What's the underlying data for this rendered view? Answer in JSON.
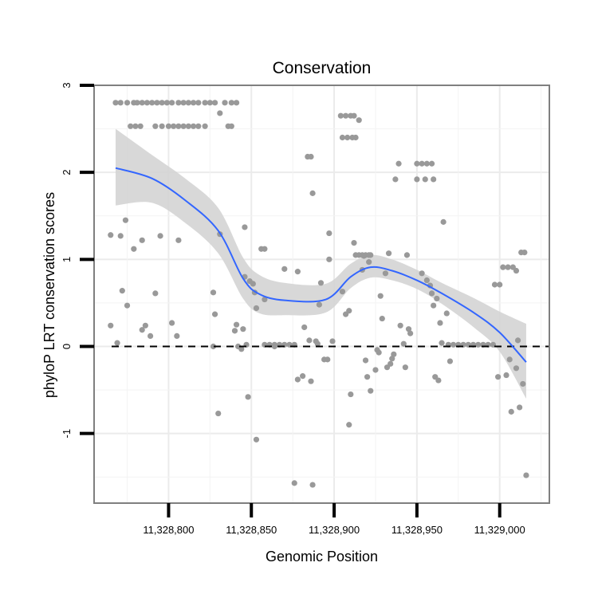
{
  "chart_data": {
    "type": "scatter",
    "title": "Conservation",
    "xlabel": "Genomic Position",
    "ylabel": "phyloP LRT conservation scores",
    "xlim": [
      11328755,
      11329030
    ],
    "ylim": [
      -1.8,
      3.0
    ],
    "x_ticks": [
      {
        "value": 11328800,
        "label": "11,328,800"
      },
      {
        "value": 11328850,
        "label": "11,328,850"
      },
      {
        "value": 11328900,
        "label": "11,328,900"
      },
      {
        "value": 11328950,
        "label": "11,328,950"
      },
      {
        "value": 11329000,
        "label": "11,329,000"
      }
    ],
    "y_ticks": [
      {
        "value": 3,
        "label": "3"
      },
      {
        "value": 2,
        "label": "2"
      },
      {
        "value": 1,
        "label": "1"
      },
      {
        "value": 0,
        "label": "0"
      },
      {
        "value": -1,
        "label": "-1"
      }
    ],
    "grid": true,
    "reference_line": {
      "y": 0,
      "style": "dashed"
    },
    "colors": {
      "points": "#999999",
      "smooth": "#3366ff",
      "ribbon": "#d4d4d4",
      "panel_border": "#7f7f7f",
      "grid": "#ebebeb"
    },
    "series": [
      {
        "name": "scores",
        "points": [
          [
            11328768,
            2.8
          ],
          [
            11328771,
            2.8
          ],
          [
            11328775,
            2.8
          ],
          [
            11328779,
            2.8
          ],
          [
            11328781,
            2.8
          ],
          [
            11328784,
            2.8
          ],
          [
            11328787,
            2.8
          ],
          [
            11328790,
            2.8
          ],
          [
            11328793,
            2.8
          ],
          [
            11328796,
            2.8
          ],
          [
            11328799,
            2.8
          ],
          [
            11328802,
            2.8
          ],
          [
            11328806,
            2.8
          ],
          [
            11328809,
            2.8
          ],
          [
            11328812,
            2.8
          ],
          [
            11328815,
            2.8
          ],
          [
            11328818,
            2.8
          ],
          [
            11328822,
            2.8
          ],
          [
            11328825,
            2.8
          ],
          [
            11328828,
            2.8
          ],
          [
            11328834,
            2.8
          ],
          [
            11328838,
            2.8
          ],
          [
            11328841,
            2.8
          ],
          [
            11328777,
            2.53
          ],
          [
            11328780,
            2.53
          ],
          [
            11328783,
            2.53
          ],
          [
            11328792,
            2.53
          ],
          [
            11328796,
            2.53
          ],
          [
            11328800,
            2.53
          ],
          [
            11328803,
            2.53
          ],
          [
            11328806,
            2.53
          ],
          [
            11328809,
            2.53
          ],
          [
            11328812,
            2.53
          ],
          [
            11328815,
            2.53
          ],
          [
            11328818,
            2.53
          ],
          [
            11328822,
            2.53
          ],
          [
            11328836,
            2.53
          ],
          [
            11328838,
            2.53
          ],
          [
            11328831,
            2.68
          ],
          [
            11328904,
            2.65
          ],
          [
            11328907,
            2.65
          ],
          [
            11328910,
            2.65
          ],
          [
            11328912,
            2.65
          ],
          [
            11328915,
            2.6
          ],
          [
            11328905,
            2.4
          ],
          [
            11328908,
            2.4
          ],
          [
            11328911,
            2.4
          ],
          [
            11328913,
            2.4
          ],
          [
            11328884,
            2.18
          ],
          [
            11328886,
            2.18
          ],
          [
            11328939,
            2.1
          ],
          [
            11328950,
            2.1
          ],
          [
            11328953,
            2.1
          ],
          [
            11328956,
            2.1
          ],
          [
            11328959,
            2.1
          ],
          [
            11328937,
            1.92
          ],
          [
            11328950,
            1.92
          ],
          [
            11328955,
            1.92
          ],
          [
            11328960,
            1.92
          ],
          [
            11328887,
            1.76
          ],
          [
            11328765,
            1.28
          ],
          [
            11328771,
            1.27
          ],
          [
            11328774,
            1.45
          ],
          [
            11328779,
            1.12
          ],
          [
            11328784,
            1.22
          ],
          [
            11328792,
            0.61
          ],
          [
            11328795,
            1.27
          ],
          [
            11328806,
            1.22
          ],
          [
            11328831,
            1.29
          ],
          [
            11328846,
            1.37
          ],
          [
            11328856,
            1.12
          ],
          [
            11328858,
            1.12
          ],
          [
            11328772,
            0.64
          ],
          [
            11328775,
            0.47
          ],
          [
            11328765,
            0.24
          ],
          [
            11328769,
            0.04
          ],
          [
            11328784,
            0.19
          ],
          [
            11328786,
            0.24
          ],
          [
            11328789,
            0.12
          ],
          [
            11328802,
            0.27
          ],
          [
            11328805,
            0.12
          ],
          [
            11328827,
            0.62
          ],
          [
            11328828,
            0.37
          ],
          [
            11328827,
            0.0
          ],
          [
            11328830,
            -0.77
          ],
          [
            11328846,
            0.8
          ],
          [
            11328849,
            0.75
          ],
          [
            11328851,
            0.72
          ],
          [
            11328852,
            0.62
          ],
          [
            11328853,
            0.44
          ],
          [
            11328858,
            0.54
          ],
          [
            11328847,
            0.02
          ],
          [
            11328848,
            -0.58
          ],
          [
            11328853,
            -1.07
          ],
          [
            11328845,
            0.2
          ],
          [
            11328840,
            0.18
          ],
          [
            11328841,
            0.25
          ],
          [
            11328842,
            0.0
          ],
          [
            11328844,
            -0.03
          ],
          [
            11328858,
            0.02
          ],
          [
            11328861,
            0.02
          ],
          [
            11328864,
            0.02
          ],
          [
            11328867,
            0.02
          ],
          [
            11328870,
            0.02
          ],
          [
            11328873,
            0.02
          ],
          [
            11328876,
            0.02
          ],
          [
            11328864,
            0.0
          ],
          [
            11328870,
            0.89
          ],
          [
            11328876,
            -1.57
          ],
          [
            11328878,
            0.86
          ],
          [
            11328878,
            -0.38
          ],
          [
            11328881,
            -0.34
          ],
          [
            11328882,
            0.22
          ],
          [
            11328885,
            0.07
          ],
          [
            11328886,
            -0.4
          ],
          [
            11328887,
            -1.59
          ],
          [
            11328889,
            0.06
          ],
          [
            11328890,
            0.03
          ],
          [
            11328891,
            0.48
          ],
          [
            11328892,
            0.73
          ],
          [
            11328894,
            -0.15
          ],
          [
            11328896,
            -0.15
          ],
          [
            11328897,
            1.3
          ],
          [
            11328897,
            1.0
          ],
          [
            11328899,
            0.06
          ],
          [
            11328905,
            0.63
          ],
          [
            11328907,
            0.37
          ],
          [
            11328909,
            0.41
          ],
          [
            11328909,
            -0.9
          ],
          [
            11328910,
            -0.55
          ],
          [
            11328912,
            1.19
          ],
          [
            11328913,
            1.05
          ],
          [
            11328915,
            1.05
          ],
          [
            11328917,
            1.05
          ],
          [
            11328919,
            1.05
          ],
          [
            11328921,
            1.05
          ],
          [
            11328922,
            1.05
          ],
          [
            11328918,
            1.04
          ],
          [
            11328921,
            0.97
          ],
          [
            11328917,
            0.88
          ],
          [
            11328919,
            -0.16
          ],
          [
            11328920,
            -0.35
          ],
          [
            11328922,
            -0.51
          ],
          [
            11328925,
            -0.27
          ],
          [
            11328926,
            -0.04
          ],
          [
            11328927,
            -0.07
          ],
          [
            11328928,
            0.58
          ],
          [
            11328929,
            0.32
          ],
          [
            11328931,
            0.84
          ],
          [
            11328932,
            -0.24
          ],
          [
            11328934,
            -0.2
          ],
          [
            11328935,
            -0.14
          ],
          [
            11328936,
            -0.09
          ],
          [
            11328933,
            1.07
          ],
          [
            11328940,
            0.24
          ],
          [
            11328942,
            0.03
          ],
          [
            11328943,
            -0.24
          ],
          [
            11328944,
            1.05
          ],
          [
            11328945,
            0.2
          ],
          [
            11328946,
            0.15
          ],
          [
            11328953,
            0.84
          ],
          [
            11328956,
            0.76
          ],
          [
            11328958,
            0.7
          ],
          [
            11328959,
            0.61
          ],
          [
            11328960,
            0.47
          ],
          [
            11328962,
            0.55
          ],
          [
            11328964,
            0.27
          ],
          [
            11328965,
            0.04
          ],
          [
            11328961,
            -0.35
          ],
          [
            11328963,
            -0.39
          ],
          [
            11328966,
            1.43
          ],
          [
            11328968,
            0.38
          ],
          [
            11328970,
            -0.17
          ],
          [
            11328969,
            0.02
          ],
          [
            11328972,
            0.02
          ],
          [
            11328975,
            0.02
          ],
          [
            11328978,
            0.02
          ],
          [
            11328981,
            0.02
          ],
          [
            11328984,
            0.02
          ],
          [
            11328987,
            0.02
          ],
          [
            11328990,
            0.02
          ],
          [
            11328993,
            0.02
          ],
          [
            11328996,
            0.02
          ],
          [
            11328997,
            0.71
          ],
          [
            11329000,
            0.71
          ],
          [
            11328999,
            -0.35
          ],
          [
            11329002,
            0.91
          ],
          [
            11329005,
            0.91
          ],
          [
            11329008,
            0.91
          ],
          [
            11329010,
            0.87
          ],
          [
            11329004,
            -0.33
          ],
          [
            11329006,
            -0.15
          ],
          [
            11329007,
            -0.75
          ],
          [
            11329010,
            -0.25
          ],
          [
            11329011,
            0.07
          ],
          [
            11329012,
            -0.7
          ],
          [
            11329013,
            1.08
          ],
          [
            11329015,
            1.08
          ],
          [
            11329014,
            -0.43
          ],
          [
            11329016,
            -1.48
          ]
        ]
      },
      {
        "name": "loess fit",
        "x": [
          11328768,
          11328790,
          11328810,
          11328830,
          11328845,
          11328855,
          11328870,
          11328895,
          11328910,
          11328922,
          11328935,
          11328950,
          11328965,
          11328985,
          11329000,
          11329016
        ],
        "y": [
          2.05,
          1.93,
          1.68,
          1.33,
          0.78,
          0.6,
          0.53,
          0.54,
          0.8,
          0.91,
          0.87,
          0.76,
          0.61,
          0.38,
          0.16,
          -0.18
        ],
        "lower": [
          1.62,
          1.65,
          1.42,
          1.07,
          0.55,
          0.38,
          0.36,
          0.39,
          0.67,
          0.79,
          0.76,
          0.66,
          0.49,
          0.21,
          -0.06,
          -0.6
        ],
        "upper": [
          2.5,
          2.2,
          1.93,
          1.59,
          1.02,
          0.82,
          0.73,
          0.72,
          0.95,
          1.05,
          1.0,
          0.88,
          0.73,
          0.55,
          0.4,
          0.26
        ]
      }
    ]
  }
}
